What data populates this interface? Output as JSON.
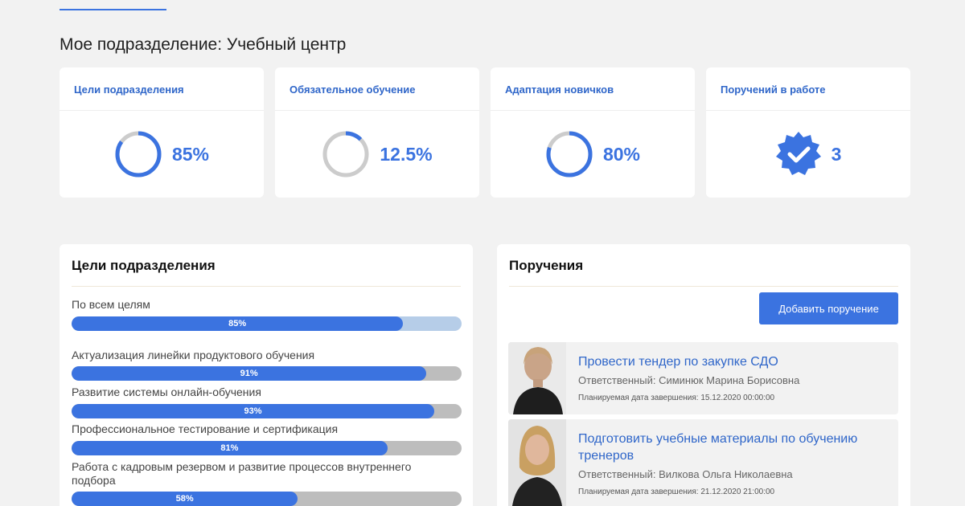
{
  "page": {
    "title": "Мое подразделение: Учебный центр"
  },
  "kpis": [
    {
      "label": "Цели подразделения",
      "value": "85%",
      "fraction": 0.85
    },
    {
      "label": "Обязательное обучение",
      "value": "12.5%",
      "fraction": 0.125
    },
    {
      "label": "Адаптация новичков",
      "value": "80%",
      "fraction": 0.8
    },
    {
      "label": "Поручений в работе",
      "value": "3",
      "icon": "verified-badge-icon"
    }
  ],
  "goals_panel": {
    "title": "Цели подразделения",
    "overall": {
      "label": "По всем целям",
      "value": "85%",
      "fraction": 0.85
    },
    "items": [
      {
        "label": "Актуализация линейки продуктового обучения",
        "value": "91%",
        "fraction": 0.91
      },
      {
        "label": "Развитие системы онлайн-обучения",
        "value": "93%",
        "fraction": 0.93
      },
      {
        "label": "Профессиональное тестирование и сертификация",
        "value": "81%",
        "fraction": 0.81
      },
      {
        "label": "Работа с кадровым резервом и развитие процессов внутреннего подбора",
        "value": "58%",
        "fraction": 0.58
      }
    ]
  },
  "tasks_panel": {
    "title": "Поручения",
    "add_button": "Добавить поручение",
    "tasks": [
      {
        "title": "Провести тендер по закупке СДО",
        "responsible": "Ответственный: Симинюк Марина Борисовна",
        "due": "Планируемая дата завершения: 15.12.2020 00:00:00"
      },
      {
        "title": "Подготовить учебные материалы по обучению тренеров",
        "responsible": "Ответственный: Вилкова Ольга Николаевна",
        "due": "Планируемая дата завершения: 21.12.2020 21:00:00"
      }
    ]
  },
  "colors": {
    "accent": "#3b73e0",
    "track": "#cccccc",
    "light_track": "#b6cde8",
    "background": "#f2f2f2"
  }
}
